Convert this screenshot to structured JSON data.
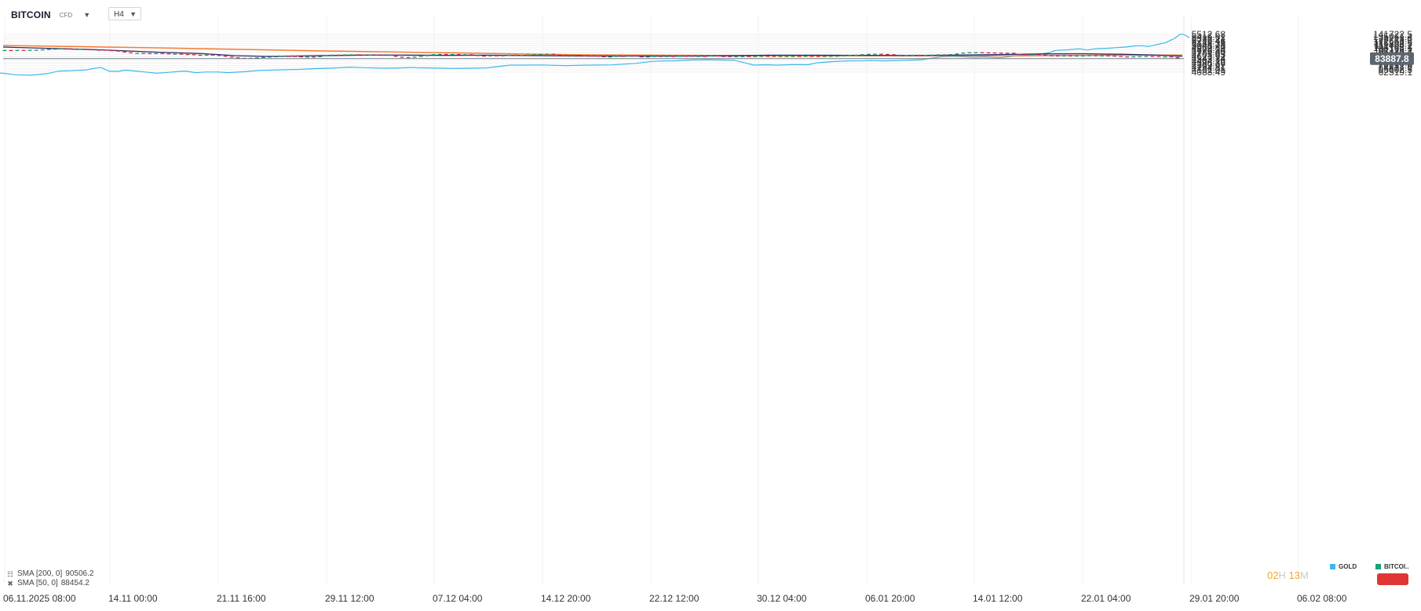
{
  "header": {
    "symbol": "BITCOIN",
    "symbol_tag": "CFD",
    "timeframe": "H4"
  },
  "indicators": [
    {
      "label": "SMA [200,  0]",
      "value": "90506.2",
      "color": "#f47b34"
    },
    {
      "label": "SMA [50,  0]",
      "value": "88454.2",
      "color": "#2a2a6e"
    }
  ],
  "countdown": {
    "hours": "02",
    "hours_unit": "H",
    "minutes": "13",
    "minutes_unit": "M"
  },
  "legend": [
    {
      "name": "GOLD",
      "color": "#3bb8ea"
    },
    {
      "name": "BITCOI..",
      "color": "#1aa37a"
    }
  ],
  "current_price_label": "83887.8",
  "colors": {
    "up": "#1b8f5a",
    "down": "#d0263a",
    "gold": "#3bb8ea",
    "sma200": "#f47b34",
    "sma50": "#2a2a6e"
  },
  "chart_data": {
    "type": "line",
    "x_tick_labels": [
      "06.11.2025   08:00",
      "14.11   00:00",
      "21.11   16:00",
      "29.11   12:00",
      "07.12   04:00",
      "14.12   20:00",
      "22.12   12:00",
      "30.12   04:00",
      "06.01   20:00",
      "14.01   12:00",
      "22.01   04:00",
      "29.01   20:00",
      "06.02   08:00"
    ],
    "gold_axis_ticks": [
      5512.68,
      5416.61,
      5322.21,
      5229.46,
      5138.33,
      5048.78,
      4960.8,
      4874.34,
      4789.4,
      4705.93,
      4623.92,
      4543.34,
      4464.16,
      4386.36,
      4309.92,
      4234.81,
      4161.01,
      4088.49
    ],
    "gold_axis_labels": [
      "5512.68",
      "5416.61",
      "5322.21",
      "5229.46",
      "5138.33",
      "5048.78",
      "4960.80",
      "4874.34",
      "4789.40",
      "4705.93",
      "4623.92",
      "4543.34",
      "4464.16",
      "4386.36",
      "4309.92",
      "4234.81",
      "4161.01",
      "4088.49"
    ],
    "btc_axis_ticks": [
      141722.5,
      135061.4,
      128713.4,
      122663.8,
      116898.5,
      111404.2,
      106168.1,
      101178.2,
      96422.7,
      91890.8,
      87571.9,
      79533.4,
      75795.3,
      72232.9,
      68837.9,
      65602.5,
      62519.1
    ],
    "btc_axis_labels": [
      "141722.5",
      "135061.4",
      "128713.4",
      "122663.8",
      "116898.5",
      "111404.2",
      "106168.1",
      "101178.2",
      "96422.7",
      "91890.8",
      "87571.9",
      "79533.4",
      "75795.3",
      "72232.9",
      "68837.9",
      "65602.5",
      "62519.1"
    ],
    "btc_close": [
      101000,
      100600,
      101300,
      100700,
      101500,
      101700,
      102400,
      103500,
      104200,
      104800,
      104000,
      103400,
      103800,
      102600,
      101900,
      101700,
      100800,
      100400,
      98000,
      96200,
      94700,
      94900,
      94700,
      94300,
      94600,
      93900,
      93000,
      93300,
      92500,
      92100,
      91100,
      90300,
      91500,
      90800,
      89400,
      87600,
      86200,
      85200,
      84600,
      85300,
      86000,
      86800,
      87700,
      88300,
      88900,
      88800,
      88100,
      87400,
      87600,
      87000,
      88600,
      90500,
      91300,
      91000,
      91700,
      91900,
      91600,
      91200,
      91500,
      91100,
      90800,
      91000,
      87500,
      86200,
      86800,
      87600,
      88700,
      91200,
      92300,
      92800,
      92100,
      92600,
      91600,
      92100,
      90700,
      89500,
      89200,
      90100,
      89700,
      90200,
      91200,
      90500,
      90800,
      91400,
      91900,
      92600,
      93200,
      91500,
      90800,
      90200,
      90700,
      89800,
      89400,
      89300,
      88300,
      87400,
      87900,
      89000,
      88700,
      89800,
      88100,
      87600,
      87900,
      88800,
      88500,
      88800,
      88600,
      89300,
      89200,
      88700,
      88900,
      88600,
      89700,
      88700,
      88500,
      87900,
      88400,
      88600,
      88200,
      88500,
      88900,
      88800,
      88400,
      88500,
      88600,
      88700,
      88400,
      88900,
      88800,
      88500,
      88700,
      89000,
      89300,
      90200,
      90600,
      91200,
      92100,
      92900,
      93300,
      92800,
      92100,
      91100,
      90500,
      90700,
      91100,
      90600,
      90900,
      91300,
      91800,
      91500,
      92400,
      93800,
      95300,
      96300,
      96400,
      96100,
      95700,
      95400,
      95100,
      95000,
      93100,
      92400,
      92100,
      92400,
      91400,
      90200,
      89900,
      89700,
      89900,
      89600,
      89700,
      89800,
      90300,
      89800,
      90000,
      89500,
      88700,
      87900,
      87500,
      88000,
      88600,
      88700,
      88400,
      87400,
      87800,
      86900,
      84000
    ]
  }
}
